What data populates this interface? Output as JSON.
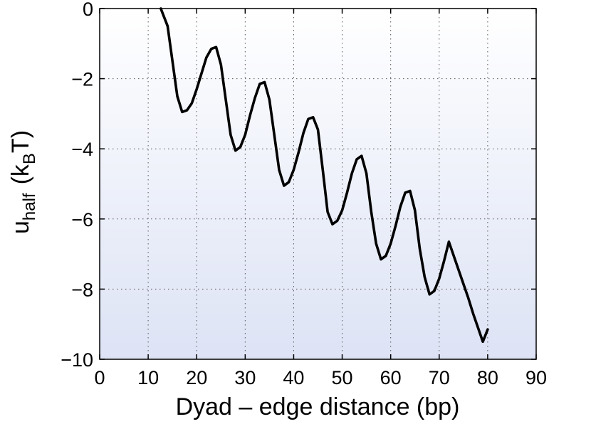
{
  "chart_data": {
    "type": "line",
    "title": "",
    "xlabel": "Dyad – edge distance (bp)",
    "ylabel_parts": {
      "main": "u",
      "sub": "half",
      "unit_open": "(k",
      "unit_sub": "B",
      "unit_close": "T)"
    },
    "xlim": [
      0,
      90
    ],
    "ylim": [
      -10,
      0
    ],
    "x_ticks": [
      0,
      10,
      20,
      30,
      40,
      50,
      60,
      70,
      80,
      90
    ],
    "x_tick_labels": [
      "0",
      "10",
      "20",
      "30",
      "40",
      "50",
      "60",
      "70",
      "80",
      "90"
    ],
    "y_ticks": [
      0,
      -2,
      -4,
      -6,
      -8,
      -10
    ],
    "y_tick_labels": [
      "0",
      "−2",
      "−4",
      "−6",
      "−8",
      "−10"
    ],
    "grid": true,
    "legend": "none",
    "colors": {
      "line": "#000000",
      "bg_top": "#ffffff",
      "bg_bottom": "#dde3f5",
      "grid": "#555555"
    },
    "series": [
      {
        "x": [
          12.6,
          14,
          15,
          16,
          17,
          18,
          19,
          20,
          21,
          22,
          23,
          24,
          25,
          26,
          27,
          28,
          29,
          30,
          31,
          32,
          33,
          34,
          35,
          36,
          37,
          38,
          39,
          40,
          41,
          42,
          43,
          44,
          45,
          46,
          47,
          48,
          49,
          50,
          51,
          52,
          53,
          54,
          55,
          56,
          57,
          58,
          59,
          60,
          61,
          62,
          63,
          64,
          65,
          66,
          67,
          68,
          69,
          70,
          71,
          72,
          73,
          74,
          75,
          76,
          77,
          78,
          79,
          80
        ],
        "y": [
          0,
          -0.5,
          -1.5,
          -2.5,
          -2.95,
          -2.9,
          -2.7,
          -2.3,
          -1.85,
          -1.4,
          -1.15,
          -1.1,
          -1.6,
          -2.6,
          -3.6,
          -4.05,
          -3.95,
          -3.6,
          -3.05,
          -2.55,
          -2.15,
          -2.1,
          -2.6,
          -3.6,
          -4.6,
          -5.05,
          -4.95,
          -4.6,
          -4.1,
          -3.55,
          -3.15,
          -3.1,
          -3.45,
          -4.6,
          -5.8,
          -6.15,
          -6.05,
          -5.75,
          -5.25,
          -4.7,
          -4.3,
          -4.2,
          -4.7,
          -5.8,
          -6.7,
          -7.15,
          -7.05,
          -6.7,
          -6.2,
          -5.65,
          -5.25,
          -5.2,
          -5.75,
          -6.85,
          -7.65,
          -8.15,
          -8.05,
          -7.7,
          -7.2,
          -6.65,
          -7.05,
          -7.45,
          -7.85,
          -8.25,
          -8.7,
          -9.1,
          -9.5,
          -9.15
        ]
      }
    ]
  }
}
